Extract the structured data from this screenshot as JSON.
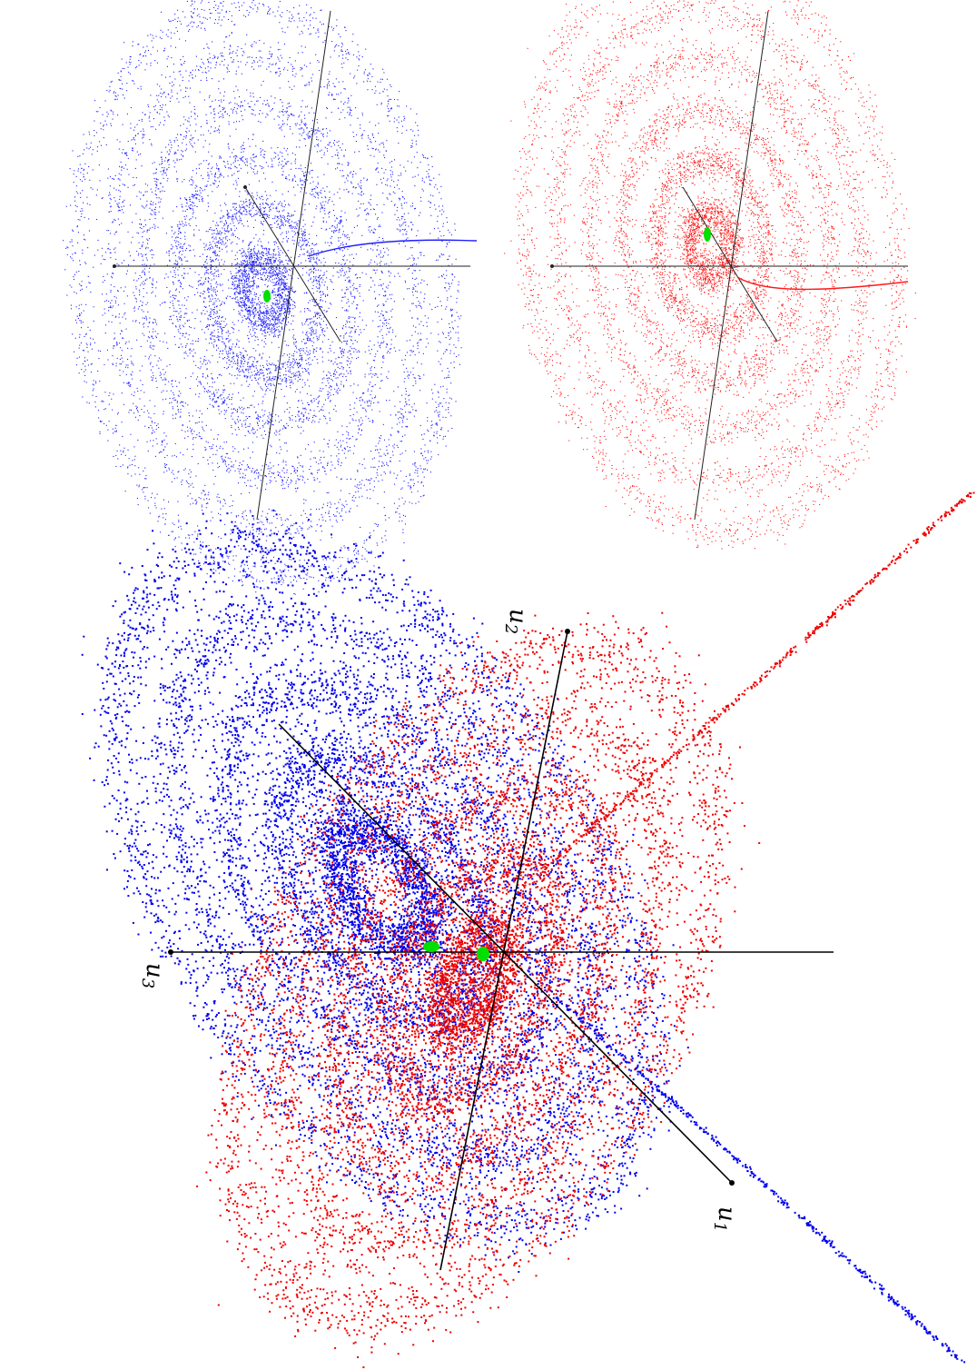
{
  "figure": {
    "panels": [
      {
        "id": "top-left",
        "attractor_color": "#2020ff",
        "fixed_point_color": "#00e000"
      },
      {
        "id": "top-right",
        "attractor_color": "#ff1a1a",
        "fixed_point_color": "#00e000"
      },
      {
        "id": "main",
        "attractor_colors": [
          "#0000ee",
          "#ee0000"
        ],
        "fixed_point_color": "#00e000"
      }
    ],
    "axis_labels": {
      "u1": {
        "base": "u",
        "sub": "1"
      },
      "u2": {
        "base": "u",
        "sub": "2"
      },
      "u3": {
        "base": "u",
        "sub": "3"
      }
    }
  }
}
